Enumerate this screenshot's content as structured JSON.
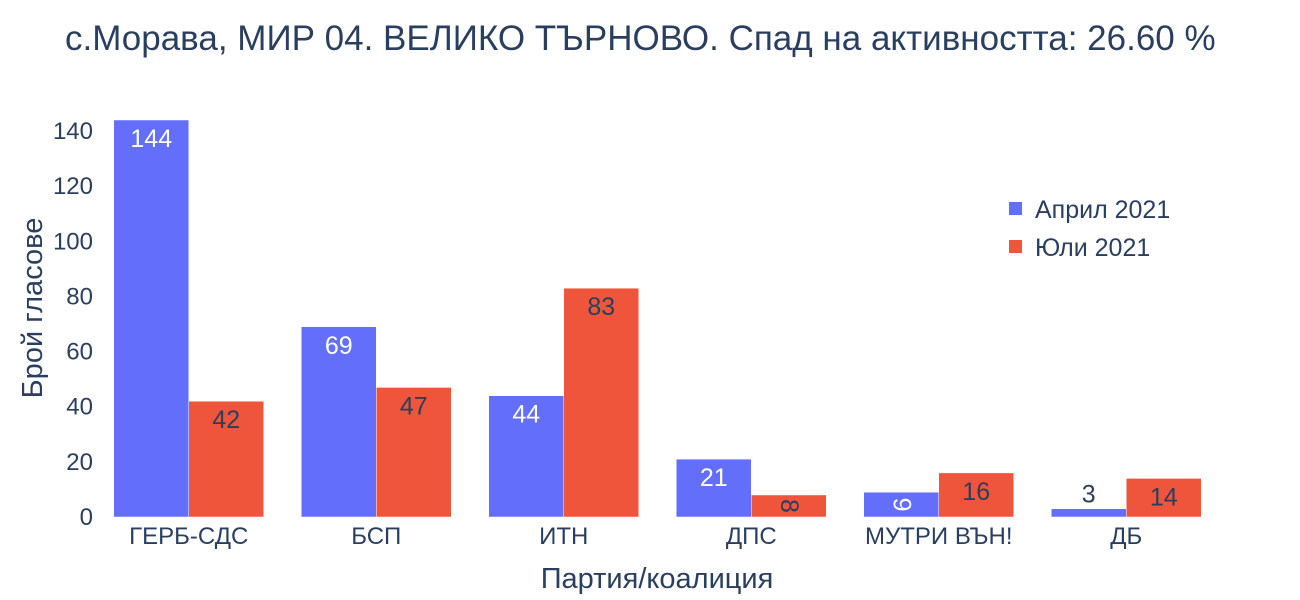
{
  "chart_data": {
    "type": "bar",
    "title": "с.Морава, МИР 04. ВЕЛИКО ТЪРНОВО. Спад на активността: 26.60 %",
    "xlabel": "Партия/коалиция",
    "ylabel": "Брой гласове",
    "categories": [
      "ГЕРБ-СДС",
      "БСП",
      "ИТН",
      "ДПС",
      "МУТРИ ВЪН!",
      "ДБ"
    ],
    "series": [
      {
        "name": "Април 2021",
        "values": [
          144,
          69,
          44,
          21,
          9,
          3
        ],
        "color": "#636efa"
      },
      {
        "name": "Юли 2021",
        "values": [
          42,
          47,
          83,
          8,
          16,
          14
        ],
        "color": "#ef553b"
      }
    ],
    "ylim": [
      0,
      144
    ],
    "yticks": [
      0,
      20,
      40,
      60,
      80,
      100,
      120,
      140
    ],
    "grid": false,
    "legend_position": "top-right"
  }
}
